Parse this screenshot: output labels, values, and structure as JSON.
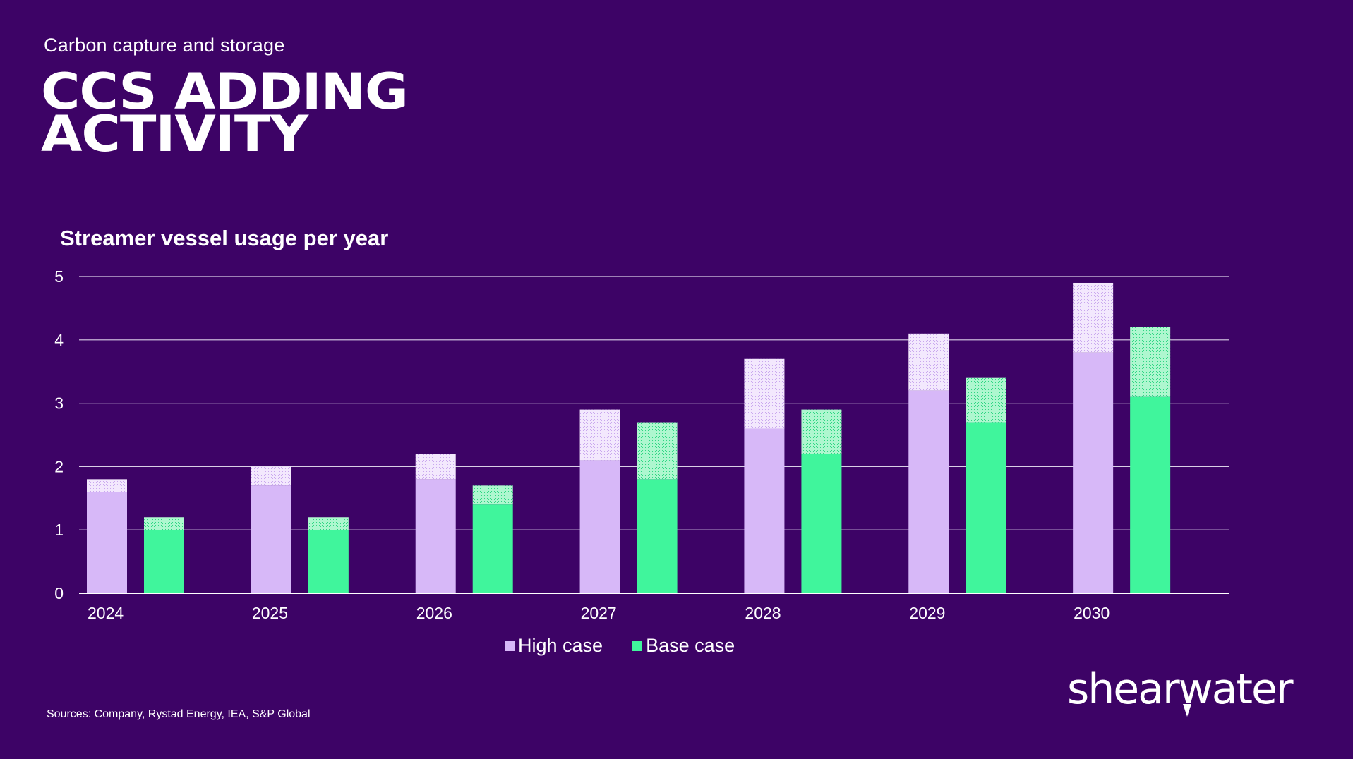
{
  "header": {
    "subtitle": "Carbon capture and storage",
    "title_line1": "CCS ADDING",
    "title_line2": "ACTIVITY"
  },
  "chart_data": {
    "type": "bar",
    "title": "Streamer vessel usage per year",
    "categories": [
      "2024",
      "2025",
      "2026",
      "2027",
      "2028",
      "2029",
      "2030"
    ],
    "ylim": [
      0,
      5
    ],
    "yticks": [
      "0",
      "1",
      "2",
      "3",
      "4",
      "5"
    ],
    "grid": true,
    "legend_position": "bottom",
    "series": [
      {
        "name": "High case",
        "color": "#d7b8f8",
        "solid": [
          1.6,
          1.7,
          1.8,
          2.1,
          2.6,
          3.2,
          3.8
        ],
        "total": [
          1.8,
          2.0,
          2.2,
          2.9,
          3.7,
          4.1,
          4.9
        ]
      },
      {
        "name": "Base case",
        "color": "#40f59c",
        "solid": [
          1.0,
          1.0,
          1.4,
          1.8,
          2.2,
          2.7,
          3.1
        ],
        "total": [
          1.2,
          1.2,
          1.7,
          2.7,
          2.9,
          3.4,
          4.2
        ]
      }
    ]
  },
  "footer": {
    "source": "Sources: Company, Rystad Energy, IEA, S&P Global",
    "logo_text": "shearwater"
  }
}
